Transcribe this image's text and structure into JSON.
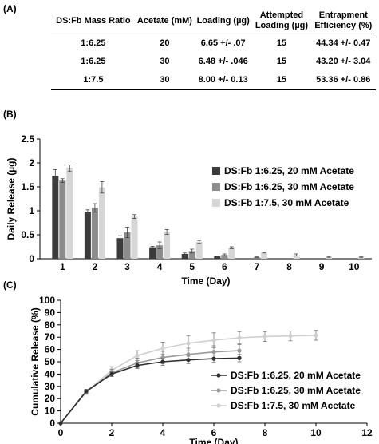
{
  "panel_a": {
    "label": "(A)",
    "headers": [
      "DS:Fb Mass Ratio",
      "Acetate (mM)",
      "Loading (µg)",
      "Attempted Loading (µg)",
      "Entrapment Efficiency (%)"
    ],
    "rows": [
      [
        "1:6.25",
        "20",
        "6.65 +/- .07",
        "15",
        "44.34 +/- 0.47"
      ],
      [
        "1:6.25",
        "30",
        "6.48 +/- .046",
        "15",
        "43.20 +/- 3.04"
      ],
      [
        "1:7.5",
        "30",
        "8.00 +/- 0.13",
        "15",
        "53.36 +/- 0.86"
      ]
    ]
  },
  "panel_b": {
    "label": "(B)"
  },
  "panel_c": {
    "label": "(C)"
  },
  "chart_data": [
    {
      "type": "bar",
      "xlabel": "Time (Day)",
      "ylabel": "Daily Release (µg)",
      "ylim": [
        0,
        2.5
      ],
      "yticks": [
        "0",
        "0.5",
        "1",
        "1.5",
        "2",
        "2.5"
      ],
      "categories": [
        "1",
        "2",
        "3",
        "4",
        "5",
        "6",
        "7",
        "8",
        "9",
        "10"
      ],
      "legend_position": "right",
      "series": [
        {
          "name": "DS:Fb 1:6.25, 20 mM Acetate",
          "color": "#3b3b3b",
          "values": [
            1.73,
            0.98,
            0.43,
            0.24,
            0.1,
            0.05,
            0,
            0,
            0,
            0
          ],
          "errors": [
            0.13,
            0.04,
            0.05,
            0.02,
            0.02,
            0.01,
            0,
            0,
            0,
            0
          ]
        },
        {
          "name": "DS:Fb 1:6.25, 30 mM Acetate",
          "color": "#8c8c8c",
          "values": [
            1.63,
            1.06,
            0.55,
            0.28,
            0.16,
            0.08,
            0.03,
            0,
            0,
            0
          ],
          "errors": [
            0.04,
            0.09,
            0.11,
            0.07,
            0.04,
            0.02,
            0.01,
            0,
            0,
            0
          ]
        },
        {
          "name": "DS:Fb 1:7.5, 30 mM Acetate",
          "color": "#d6d6d6",
          "values": [
            1.89,
            1.49,
            0.88,
            0.56,
            0.35,
            0.23,
            0.13,
            0.08,
            0.04,
            0.03
          ],
          "errors": [
            0.07,
            0.12,
            0.04,
            0.05,
            0.03,
            0.02,
            0.01,
            0.02,
            0.01,
            0.01
          ]
        }
      ]
    },
    {
      "type": "line",
      "xlabel": "Time (Day)",
      "ylabel": "Cumulative Release (%)",
      "xlim": [
        0,
        12
      ],
      "ylim": [
        0,
        100
      ],
      "xticks": [
        "0",
        "2",
        "4",
        "6",
        "8",
        "10",
        "12"
      ],
      "yticks": [
        "0",
        "10",
        "20",
        "30",
        "40",
        "50",
        "60",
        "70",
        "80",
        "90",
        "100"
      ],
      "legend_position": "bottom-right",
      "series": [
        {
          "name": "DS:Fb 1:6.25, 20 mM Acetate",
          "color": "#2f2f2f",
          "marker": "circle",
          "x": [
            0,
            1,
            2,
            3,
            4,
            5,
            6,
            7
          ],
          "y": [
            0,
            26,
            40,
            47,
            50,
            51.5,
            52.5,
            53
          ],
          "errors": [
            0,
            1.5,
            2,
            2.5,
            3,
            3,
            3,
            3
          ]
        },
        {
          "name": "DS:Fb 1:6.25, 30 mM Acetate",
          "color": "#9a9a9a",
          "marker": "circle",
          "x": [
            0,
            1,
            2,
            3,
            4,
            5,
            6,
            7
          ],
          "y": [
            0,
            25.5,
            41,
            49,
            53.5,
            56,
            58,
            59
          ],
          "errors": [
            0,
            2,
            3,
            4,
            5,
            5,
            5,
            5
          ]
        },
        {
          "name": "DS:Fb 1:7.5, 30 mM Acetate",
          "color": "#cfcfcf",
          "marker": "circle",
          "x": [
            0,
            1,
            2,
            3,
            4,
            5,
            6,
            7,
            8,
            9,
            10
          ],
          "y": [
            0,
            25.5,
            43,
            55,
            61,
            65,
            67.5,
            69.5,
            70.5,
            71,
            71.5
          ],
          "errors": [
            0,
            1.5,
            3,
            4,
            5,
            6,
            6,
            5,
            4,
            4,
            4
          ]
        }
      ]
    }
  ]
}
